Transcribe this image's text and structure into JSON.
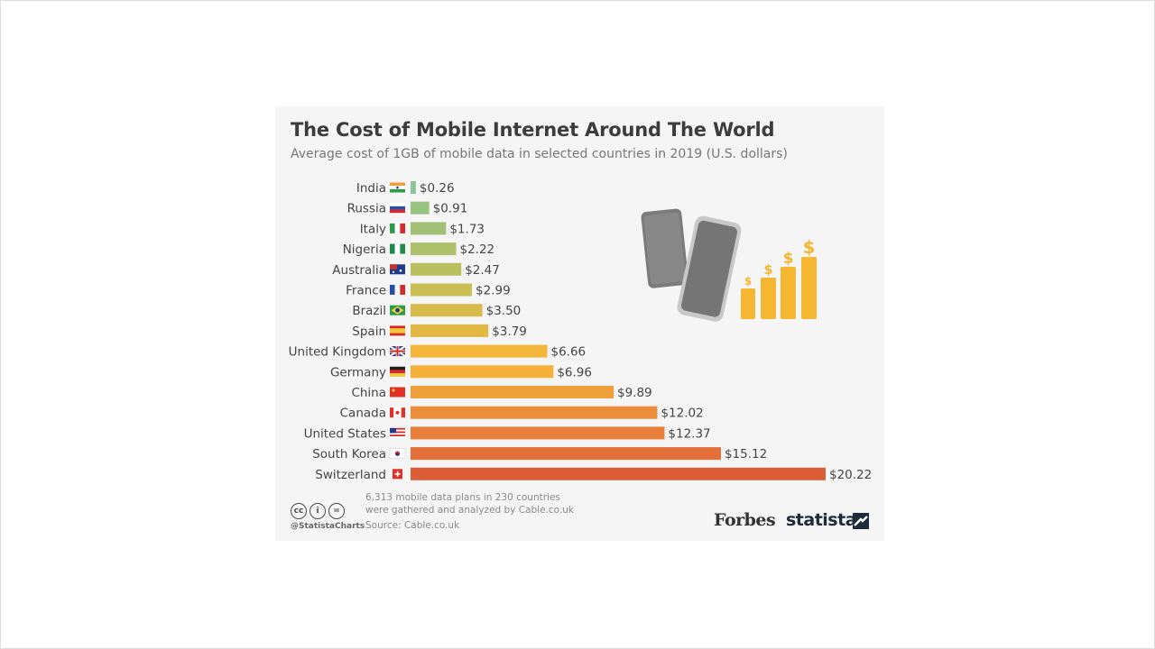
{
  "chart_data": {
    "type": "bar",
    "orientation": "horizontal",
    "title": "The Cost of Mobile Internet Around The World",
    "subtitle": "Average cost of 1GB of mobile data in selected countries in 2019 (U.S. dollars)",
    "xlabel": "",
    "ylabel": "",
    "xlim": [
      0,
      20.22
    ],
    "grid": false,
    "categories": [
      "India",
      "Russia",
      "Italy",
      "Nigeria",
      "Australia",
      "France",
      "Brazil",
      "Spain",
      "United Kingdom",
      "Germany",
      "China",
      "Canada",
      "United States",
      "South Korea",
      "Switzerland"
    ],
    "values": [
      0.26,
      0.91,
      1.73,
      2.22,
      2.47,
      2.99,
      3.5,
      3.79,
      6.66,
      6.96,
      9.89,
      12.02,
      12.37,
      15.12,
      20.22
    ],
    "value_labels": [
      "$0.26",
      "$0.91",
      "$1.73",
      "$2.22",
      "$2.47",
      "$2.99",
      "$3.50",
      "$3.79",
      "$6.66",
      "$6.96",
      "$9.89",
      "$12.02",
      "$12.37",
      "$15.12",
      "$20.22"
    ],
    "bar_colors": [
      "#8fc59a",
      "#98c383",
      "#a2c176",
      "#acc16a",
      "#b9bf5f",
      "#c9bf55",
      "#d7bb4c",
      "#e2b844",
      "#f3b53a",
      "#f5b13a",
      "#f0a03a",
      "#ec8d3b",
      "#e8803b",
      "#e36f3a",
      "#dc5e37"
    ],
    "flag_icons": [
      "flag-india-icon",
      "flag-russia-icon",
      "flag-italy-icon",
      "flag-nigeria-icon",
      "flag-australia-icon",
      "flag-france-icon",
      "flag-brazil-icon",
      "flag-spain-icon",
      "flag-uk-icon",
      "flag-germany-icon",
      "flag-china-icon",
      "flag-canada-icon",
      "flag-usa-icon",
      "flag-south-korea-icon",
      "flag-switzerland-icon"
    ]
  },
  "footer": {
    "note_line1": "6,313 mobile data plans in 230 countries",
    "note_line2": "were gathered and analyzed by Cable.co.uk",
    "source": "Source: Cable.co.uk",
    "handle": "@StatistaCharts",
    "cc_labels": [
      "cc",
      "i",
      "="
    ]
  },
  "branding": {
    "forbes": "Forbes",
    "statista": "statista"
  },
  "illustration": {
    "icons": [
      "smartphone-icon",
      "smartphone-icon",
      "dollar-growth-bars-icon"
    ],
    "dollar_sign": "$",
    "phone_color": "#777777",
    "coin_color": "#f5b731"
  }
}
